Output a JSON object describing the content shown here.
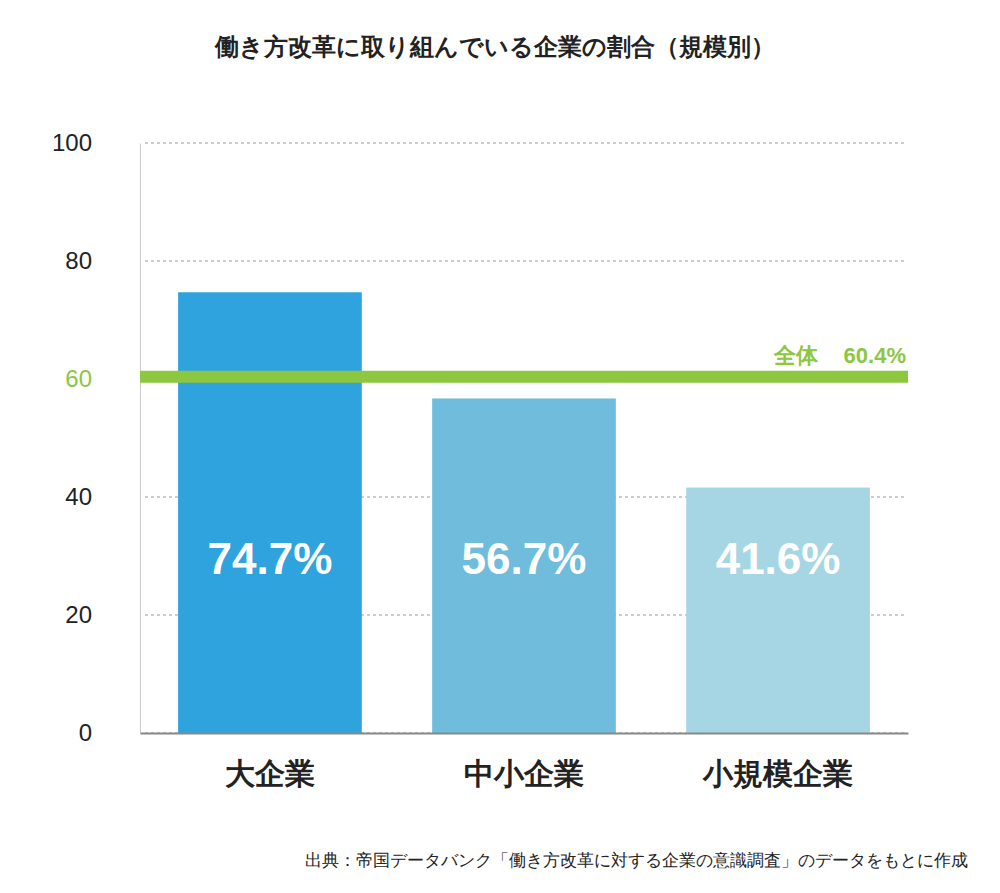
{
  "chart_data": {
    "type": "bar",
    "title": "働き方改革に取り組んでいる企業の割合（規模別）",
    "categories": [
      "大企業",
      "中小企業",
      "小規模企業"
    ],
    "values": [
      74.7,
      56.7,
      41.6
    ],
    "value_labels": [
      "74.7%",
      "56.7%",
      "41.6%"
    ],
    "colors": [
      "#2ea3dd",
      "#6fbcdd",
      "#a6d6e3"
    ],
    "ylim": [
      0,
      100
    ],
    "yticks": [
      0,
      20,
      40,
      60,
      80,
      100
    ],
    "grid": true,
    "data_labels": true,
    "reference_line": {
      "label": "全体",
      "value": 60.4,
      "value_label": "60.4%",
      "color": "#8dc63f"
    },
    "source": "出典：帝国データバンク「働き方改革に対する企業の意識調査」のデータをもとに作成"
  }
}
